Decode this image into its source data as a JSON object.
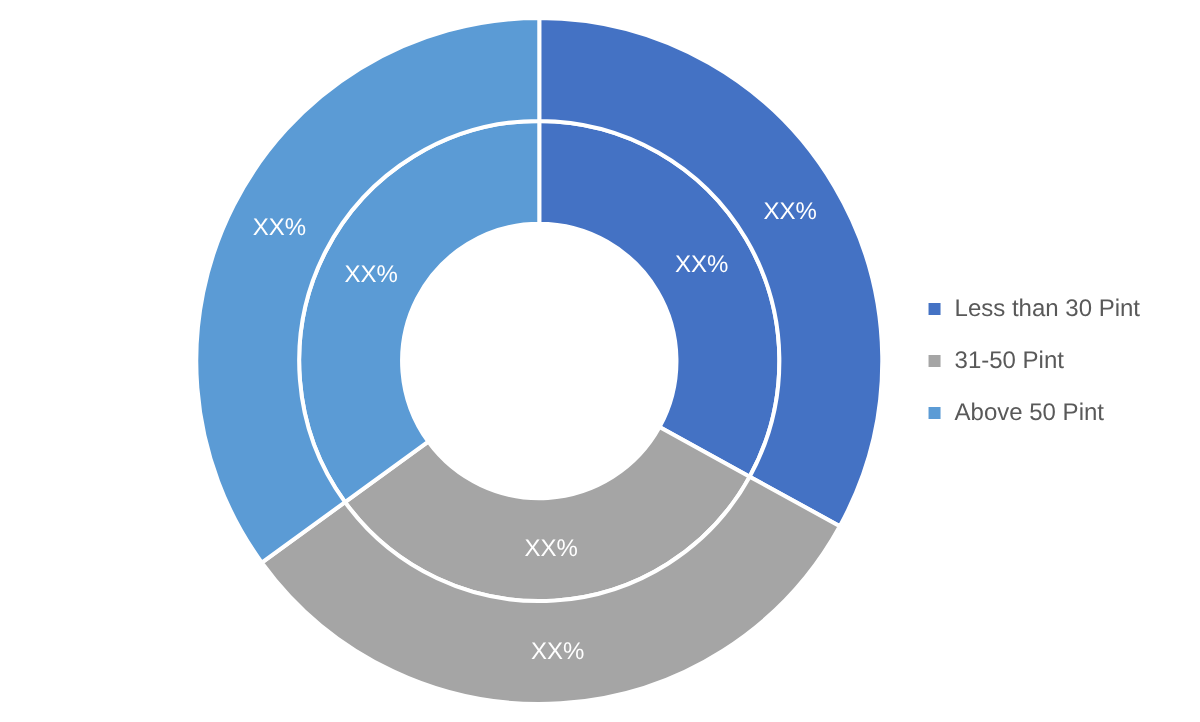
{
  "chart_data": {
    "type": "donut",
    "categories": [
      "Less than 30 Pint",
      "31-50 Pint",
      "Above 50 Pint"
    ],
    "colors": [
      "#4472c4",
      "#a5a5a5",
      "#5b9bd5"
    ],
    "series": [
      {
        "values": [
          33,
          32,
          35
        ],
        "value_labels": [
          "XX%",
          "XX%",
          "XX%"
        ]
      },
      {
        "values": [
          33,
          32,
          35
        ],
        "value_labels": [
          "XX%",
          "XX%",
          "XX%"
        ]
      }
    ],
    "legend": "right"
  }
}
